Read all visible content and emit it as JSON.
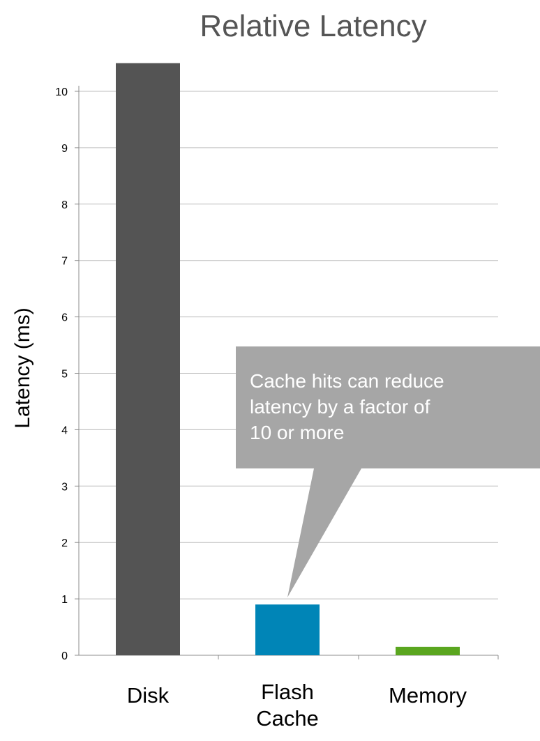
{
  "chart_data": {
    "type": "bar",
    "title": "Relative Latency",
    "xlabel": "",
    "ylabel": "Latency (ms)",
    "ylim": [
      0,
      10
    ],
    "yticks": [
      0,
      1,
      2,
      3,
      4,
      5,
      6,
      7,
      8,
      9,
      10
    ],
    "categories": [
      [
        "Disk"
      ],
      [
        "Flash",
        "Cache"
      ],
      [
        "Memory"
      ]
    ],
    "values": [
      10.5,
      0.9,
      0.15
    ],
    "colors": [
      "#545454",
      "#0085b7",
      "#5aa61f"
    ],
    "grid": true,
    "legend": "none",
    "annotation": {
      "lines": [
        "Cache hits can reduce",
        "latency by a factor of",
        "10 or more"
      ],
      "points_to": "Flash Cache",
      "color": "#a6a6a6"
    }
  }
}
